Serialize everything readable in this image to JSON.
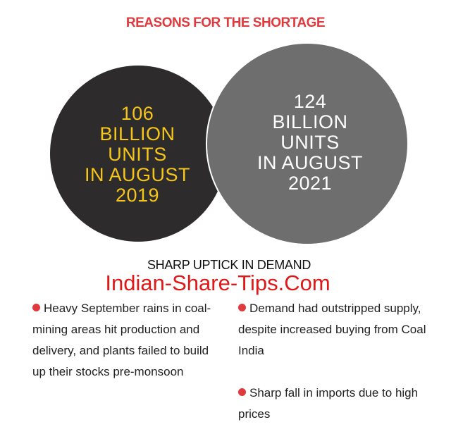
{
  "title": "REASONS FOR THE SHORTAGE",
  "circle_2019": {
    "lines": [
      "106",
      "BILLION",
      "UNITS",
      "IN AUGUST",
      "2019"
    ],
    "fill": "#2d2b2c",
    "text_color": "#f5c518"
  },
  "circle_2021": {
    "lines": [
      "124",
      "BILLION",
      "UNITS",
      "IN AUGUST",
      "2021"
    ],
    "fill": "#6e6e6e",
    "text_color": "#ffffff"
  },
  "subtitle": "SHARP UPTICK IN DEMAND",
  "watermark": "Indian-Share-Tips.Com",
  "bullets_left": [
    "Heavy September rains in coal-mining areas hit production and delivery, and plants failed to build up their stocks pre-monsoon"
  ],
  "bullets_right": [
    "Demand had outstripped supply, despite increased buying from Coal India",
    "Sharp fall in imports due to high prices"
  ],
  "colors": {
    "accent_red": "#e03a3e",
    "watermark_red": "#e01818"
  }
}
